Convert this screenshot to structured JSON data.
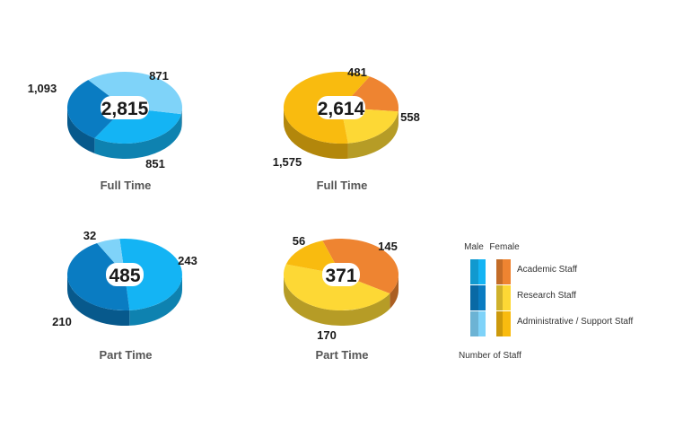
{
  "chart_data": [
    {
      "type": "pie",
      "group": "Male",
      "caption": "Full Time",
      "total": "2,815",
      "slices": [
        {
          "category": "Academic Staff",
          "value": 871,
          "label": "871"
        },
        {
          "category": "Research Staff",
          "value": 851,
          "label": "851"
        },
        {
          "category": "Administrative / Support Staff",
          "value": 1093,
          "label": "1,093"
        }
      ]
    },
    {
      "type": "pie",
      "group": "Female",
      "caption": "Full Time",
      "total": "2,614",
      "slices": [
        {
          "category": "Academic Staff",
          "value": 481,
          "label": "481"
        },
        {
          "category": "Research Staff",
          "value": 558,
          "label": "558"
        },
        {
          "category": "Administrative / Support Staff",
          "value": 1575,
          "label": "1,575"
        }
      ]
    },
    {
      "type": "pie",
      "group": "Male",
      "caption": "Part Time",
      "total": "485",
      "slices": [
        {
          "category": "Academic Staff",
          "value": 243,
          "label": "243"
        },
        {
          "category": "Research Staff",
          "value": 210,
          "label": "210"
        },
        {
          "category": "Administrative / Support Staff",
          "value": 32,
          "label": "32"
        }
      ]
    },
    {
      "type": "pie",
      "group": "Female",
      "caption": "Part Time",
      "total": "371",
      "slices": [
        {
          "category": "Academic Staff",
          "value": 145,
          "label": "145"
        },
        {
          "category": "Research Staff",
          "value": 170,
          "label": "170"
        },
        {
          "category": "Administrative / Support Staff",
          "value": 56,
          "label": "56"
        }
      ]
    }
  ],
  "legend": {
    "male_header": "Male",
    "female_header": "Female",
    "items": [
      {
        "label": "Academic Staff",
        "male_color": "#14b4f4",
        "female_color": "#ee8431"
      },
      {
        "label": "Research Staff",
        "male_color": "#0a7cc2",
        "female_color": "#fdd835"
      },
      {
        "label": "Administrative / Support Staff",
        "male_color": "#7fd3f9",
        "female_color": "#f9bb0f"
      }
    ],
    "footer": "Number of Staff"
  },
  "colors": {
    "Male": {
      "Academic Staff": "#14b4f4",
      "Research Staff": "#0a7cc2",
      "Administrative / Support Staff": "#7fd3f9"
    },
    "Female": {
      "Academic Staff": "#ee8431",
      "Research Staff": "#fdd835",
      "Administrative / Support Staff": "#f9bb0f"
    }
  }
}
